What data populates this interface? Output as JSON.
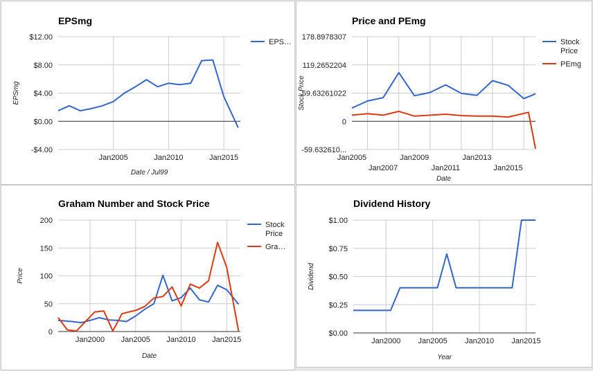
{
  "chart_data": [
    {
      "type": "line",
      "title": "EPSmg",
      "xlabel": "Date / Jul99",
      "ylabel": "EPSmg",
      "x_range": [
        2000,
        2016.5
      ],
      "ylim": [
        -4,
        12
      ],
      "x_ticks": [
        {
          "v": 2005,
          "label": "Jan2005"
        },
        {
          "v": 2010,
          "label": "Jan2010"
        },
        {
          "v": 2015,
          "label": "Jan2015"
        }
      ],
      "y_ticks": [
        {
          "v": 12,
          "label": "$12.00"
        },
        {
          "v": 8,
          "label": "$8.00"
        },
        {
          "v": 4,
          "label": "$4.00"
        },
        {
          "v": 0,
          "label": "$0.00"
        },
        {
          "v": -4,
          "label": "-$4.00"
        }
      ],
      "x_grid": [
        2005,
        2010,
        2015
      ],
      "baseline": 0,
      "legend_position": "right",
      "series": [
        {
          "name": "EPS…",
          "color": "#3366cc",
          "x": [
            2000,
            2001,
            2002,
            2003,
            2004,
            2005,
            2006,
            2007,
            2008,
            2009,
            2010,
            2011,
            2012,
            2013,
            2014,
            2015,
            2016.3
          ],
          "y": [
            1.5,
            2.2,
            1.5,
            1.8,
            2.2,
            2.8,
            4.0,
            4.9,
            5.9,
            4.9,
            5.4,
            5.2,
            5.4,
            8.6,
            8.7,
            3.5,
            -0.9
          ]
        }
      ]
    },
    {
      "type": "line",
      "title": "Price and PEmg",
      "xlabel": "Date",
      "ylabel": "Stock Price",
      "x_range": [
        2005,
        2016.75
      ],
      "ylim": [
        -59.6326102,
        178.8978307
      ],
      "x_ticks": [
        {
          "v": 2005,
          "label": "Jan2005",
          "row": 0
        },
        {
          "v": 2007,
          "label": "Jan2007",
          "row": 1
        },
        {
          "v": 2009,
          "label": "Jan2009",
          "row": 0
        },
        {
          "v": 2011,
          "label": "Jan2011",
          "row": 1
        },
        {
          "v": 2013,
          "label": "Jan2013",
          "row": 0
        },
        {
          "v": 2015,
          "label": "Jan2015",
          "row": 1
        }
      ],
      "y_ticks": [
        {
          "v": 178.8978307,
          "label": "178.8978307"
        },
        {
          "v": 119.2652204,
          "label": "119.2652204"
        },
        {
          "v": 59.63261022,
          "label": "59.63261022"
        },
        {
          "v": 0,
          "label": "0"
        },
        {
          "v": -59.6326102,
          "label": "-59.632610..."
        }
      ],
      "x_grid": [
        2006,
        2008,
        2010,
        2012,
        2014,
        2016
      ],
      "baseline": 0,
      "legend_position": "right",
      "series": [
        {
          "name": "Stock Price",
          "color": "#3366cc",
          "x": [
            2005,
            2006,
            2007,
            2008,
            2009,
            2010,
            2011,
            2012,
            2013,
            2014,
            2015,
            2016,
            2016.75
          ],
          "y": [
            28,
            43,
            50,
            103,
            54,
            61,
            77,
            59,
            55,
            86,
            76,
            48,
            58
          ]
        },
        {
          "name": "PEmg",
          "color": "#dc3912",
          "x": [
            2005,
            2006,
            2007,
            2008,
            2009,
            2010,
            2011,
            2012,
            2013,
            2014,
            2015,
            2016.3,
            2016.75
          ],
          "y": [
            13,
            16,
            13,
            21,
            11,
            13,
            15,
            12,
            11,
            11,
            9,
            19,
            -58
          ]
        }
      ]
    },
    {
      "type": "line",
      "title": "Graham Number and Stock Price",
      "xlabel": "Date",
      "ylabel": "Price",
      "x_range": [
        1996.5,
        2016.5
      ],
      "ylim": [
        0,
        200
      ],
      "x_ticks": [
        {
          "v": 2000,
          "label": "Jan2000"
        },
        {
          "v": 2005,
          "label": "Jan2005"
        },
        {
          "v": 2010,
          "label": "Jan2010"
        },
        {
          "v": 2015,
          "label": "Jan2015"
        }
      ],
      "y_ticks": [
        {
          "v": 200,
          "label": "200"
        },
        {
          "v": 150,
          "label": "150"
        },
        {
          "v": 100,
          "label": "100"
        },
        {
          "v": 50,
          "label": "50"
        },
        {
          "v": 0,
          "label": "0"
        }
      ],
      "x_grid": [
        2000,
        2005,
        2010,
        2015
      ],
      "baseline": 0,
      "legend_position": "right",
      "series": [
        {
          "name": "Stock Price",
          "color": "#3366cc",
          "x": [
            1996.5,
            1998,
            1999,
            2000,
            2001,
            2002,
            2003,
            2004,
            2005,
            2006,
            2007,
            2008,
            2009,
            2010,
            2011,
            2012,
            2013,
            2014,
            2015,
            2016.3
          ],
          "y": [
            20,
            18,
            16,
            20,
            25,
            21,
            20,
            18,
            28,
            40,
            50,
            101,
            55,
            61,
            78,
            57,
            53,
            83,
            75,
            49
          ]
        },
        {
          "name": "Gra…",
          "color": "#dc3912",
          "x": [
            1996.5,
            1997.5,
            1998.5,
            2000.5,
            2001.5,
            2002.5,
            2003.5,
            2005,
            2006,
            2007,
            2008,
            2009,
            2010,
            2011,
            2012,
            2013,
            2014,
            2015,
            2016.3
          ],
          "y": [
            25,
            3,
            1,
            35,
            37,
            1,
            32,
            38,
            45,
            60,
            63,
            80,
            46,
            85,
            78,
            91,
            160,
            115,
            1
          ]
        }
      ]
    },
    {
      "type": "line",
      "title": "Dividend History",
      "xlabel": "Year",
      "ylabel": "Dividend",
      "x_range": [
        1996.5,
        2016
      ],
      "ylim": [
        0,
        1
      ],
      "x_ticks": [
        {
          "v": 2000,
          "label": "Jan2000"
        },
        {
          "v": 2005,
          "label": "Jan2005"
        },
        {
          "v": 2010,
          "label": "Jan2010"
        },
        {
          "v": 2015,
          "label": "Jan2015"
        }
      ],
      "y_ticks": [
        {
          "v": 1,
          "label": "$1.00"
        },
        {
          "v": 0.75,
          "label": "$0.75"
        },
        {
          "v": 0.5,
          "label": "$0.50"
        },
        {
          "v": 0.25,
          "label": "$0.25"
        },
        {
          "v": 0,
          "label": "$0.00"
        }
      ],
      "x_grid": [
        2000,
        2005,
        2010,
        2015
      ],
      "baseline": 0,
      "legend_position": "none",
      "series": [
        {
          "name": "",
          "color": "#3366cc",
          "x": [
            1996.5,
            1997.5,
            1998.5,
            1999.5,
            2000.5,
            2001.5,
            2002.5,
            2003.5,
            2004.5,
            2005.5,
            2006.5,
            2007.5,
            2008.5,
            2009.5,
            2010.5,
            2011.5,
            2012.5,
            2013.5,
            2014.5,
            2015.5,
            2016
          ],
          "y": [
            0.2,
            0.2,
            0.2,
            0.2,
            0.2,
            0.4,
            0.4,
            0.4,
            0.4,
            0.4,
            0.7,
            0.4,
            0.4,
            0.4,
            0.4,
            0.4,
            0.4,
            0.4,
            1.0,
            1.0,
            1.0
          ]
        }
      ]
    }
  ]
}
